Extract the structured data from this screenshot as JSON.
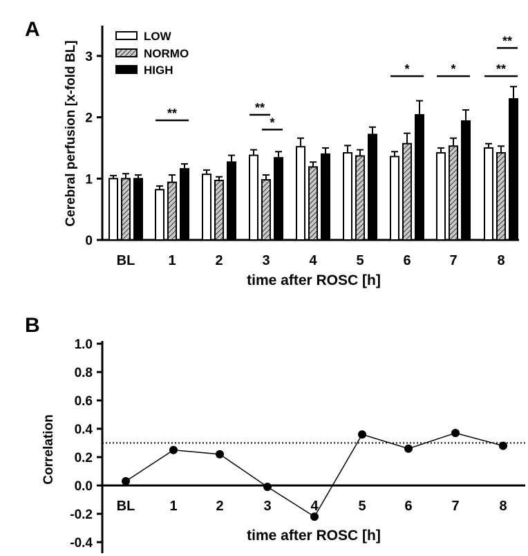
{
  "chart_data": [
    {
      "type": "bar",
      "panel_label": "A",
      "ylabel": "Cerebral perfusion [x-fold BL]",
      "xlabel": "time after ROSC [h]",
      "ylim": [
        0,
        3.4
      ],
      "yticks": [
        "0",
        "1",
        "2",
        "3"
      ],
      "categories": [
        "BL",
        "1",
        "2",
        "3",
        "4",
        "5",
        "6",
        "7",
        "8"
      ],
      "legend_position": "top-left",
      "series": [
        {
          "name": "LOW",
          "style": "white",
          "values": [
            1.0,
            0.82,
            1.07,
            1.38,
            1.52,
            1.42,
            1.36,
            1.42,
            1.5
          ],
          "errors": [
            0.05,
            0.06,
            0.07,
            0.09,
            0.14,
            0.12,
            0.08,
            0.08,
            0.07
          ]
        },
        {
          "name": "NORMO",
          "style": "hatched",
          "values": [
            1.0,
            0.94,
            0.97,
            0.98,
            1.19,
            1.37,
            1.57,
            1.53,
            1.42
          ],
          "errors": [
            0.08,
            0.12,
            0.06,
            0.08,
            0.08,
            0.1,
            0.17,
            0.13,
            0.11
          ]
        },
        {
          "name": "HIGH",
          "style": "black",
          "values": [
            1.0,
            1.16,
            1.27,
            1.34,
            1.4,
            1.72,
            2.04,
            1.94,
            2.3
          ],
          "errors": [
            0.06,
            0.08,
            0.11,
            0.1,
            0.1,
            0.12,
            0.23,
            0.18,
            0.2
          ]
        }
      ],
      "significance": [
        {
          "category": "1",
          "from": "LOW",
          "to": "HIGH",
          "label": "**",
          "y": 1.95
        },
        {
          "category": "3",
          "from": "LOW",
          "to": "NORMO",
          "label": "**",
          "y": 2.04
        },
        {
          "category": "3",
          "from": "NORMO",
          "to": "HIGH",
          "label": "*",
          "y": 1.8
        },
        {
          "category": "6",
          "from": "LOW",
          "to": "HIGH",
          "label": "*",
          "y": 2.67
        },
        {
          "category": "7",
          "from": "LOW",
          "to": "HIGH",
          "label": "*",
          "y": 2.67
        },
        {
          "category": "8",
          "from": "LOW",
          "to": "HIGH",
          "label": "**",
          "y": 2.67
        },
        {
          "category": "8",
          "from": "NORMO",
          "to": "HIGH",
          "label": "**",
          "y": 3.13
        }
      ]
    },
    {
      "type": "line",
      "panel_label": "B",
      "ylabel": "Correlation",
      "xlabel": "time after ROSC [h]",
      "ylim": [
        -0.5,
        1.0
      ],
      "yticks": [
        "1.0",
        "0.8",
        "0.6",
        "0.4",
        "0.2",
        "0.0",
        "-0.2",
        "-0.4"
      ],
      "ytick_values": [
        1.0,
        0.8,
        0.6,
        0.4,
        0.2,
        0.0,
        -0.2,
        -0.4
      ],
      "categories": [
        "BL",
        "1",
        "2",
        "3",
        "4",
        "5",
        "6",
        "7",
        "8"
      ],
      "values": [
        0.03,
        0.25,
        0.22,
        -0.01,
        -0.22,
        0.36,
        0.26,
        0.37,
        0.28
      ],
      "reference_line": 0.3
    }
  ]
}
